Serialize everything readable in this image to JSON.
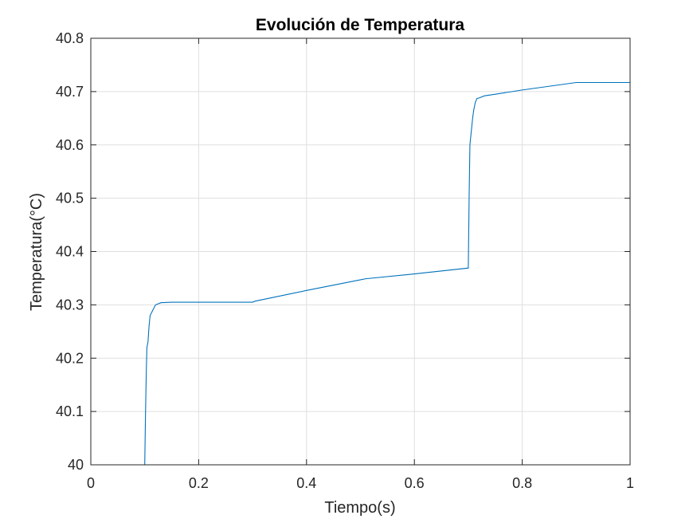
{
  "chart_data": {
    "type": "line",
    "title": "Evolución de Temperatura",
    "xlabel": "Tiempo(s)",
    "ylabel": "Temperatura(°C)",
    "xlim": [
      0,
      1
    ],
    "ylim": [
      40,
      40.8
    ],
    "xticks": [
      0,
      0.2,
      0.4,
      0.6,
      0.8,
      1
    ],
    "xtick_labels": [
      "0",
      "0.2",
      "0.4",
      "0.6",
      "0.8",
      "1"
    ],
    "yticks": [
      40,
      40.1,
      40.2,
      40.3,
      40.4,
      40.5,
      40.6,
      40.7,
      40.8
    ],
    "ytick_labels": [
      "40",
      "40.1",
      "40.2",
      "40.3",
      "40.4",
      "40.5",
      "40.6",
      "40.7",
      "40.8"
    ],
    "grid": true,
    "line_color": "#0072BD",
    "series": [
      {
        "x": [
          0,
          0.1,
          0.1015,
          0.103,
          0.104,
          0.106,
          0.108,
          0.11,
          0.115,
          0.12,
          0.13,
          0.15,
          0.2,
          0.3,
          0.305,
          0.4,
          0.5,
          0.51,
          0.6,
          0.7,
          0.7015,
          0.703,
          0.705,
          0.708,
          0.71,
          0.713,
          0.716,
          0.72,
          0.73,
          0.75,
          0.8,
          0.9,
          0.95,
          1.0
        ],
        "y": [
          40,
          40,
          40.1,
          40.18,
          40.22,
          40.23,
          40.26,
          40.28,
          40.29,
          40.3,
          40.304,
          40.305,
          40.305,
          40.305,
          40.307,
          40.327,
          40.347,
          40.349,
          40.358,
          40.369,
          40.5,
          40.6,
          40.62,
          40.65,
          40.665,
          40.68,
          40.687,
          40.688,
          40.692,
          40.695,
          40.703,
          40.717,
          40.717,
          40.717
        ]
      }
    ]
  }
}
